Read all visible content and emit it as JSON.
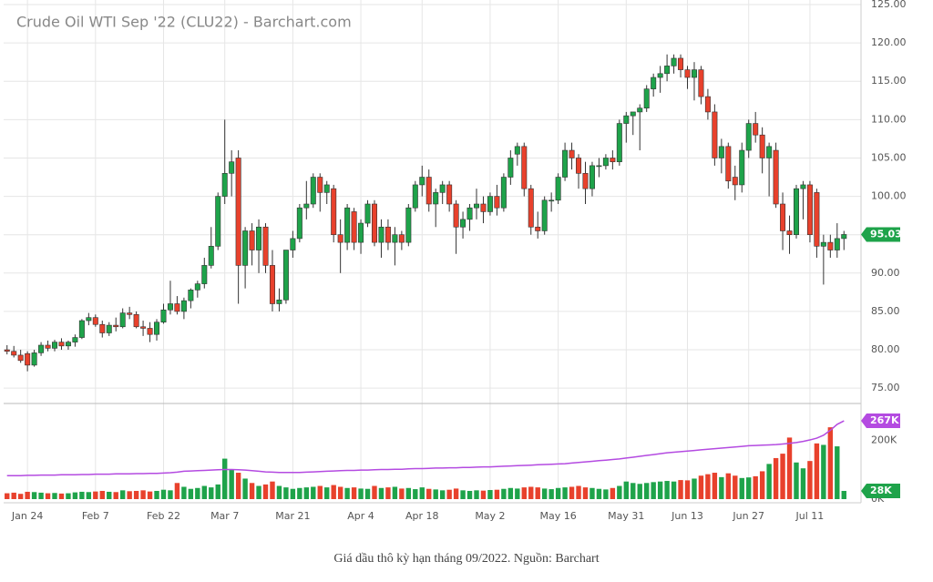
{
  "chart_data": {
    "type": "candlestick",
    "title": "Crude Oil WTI Sep '22 (CLU22) - Barchart.com",
    "caption": "Giá dầu thô kỳ hạn tháng 09/2022. Nguồn: Barchart",
    "up_color": "#1ea34a",
    "down_color": "#e8412c",
    "grid": true,
    "categories": [
      null,
      null,
      null,
      "Jan 24",
      null,
      null,
      null,
      null,
      null,
      null,
      null,
      null,
      null,
      "Feb 7",
      null,
      null,
      null,
      null,
      null,
      null,
      null,
      null,
      null,
      "Feb 22",
      null,
      null,
      null,
      null,
      null,
      null,
      null,
      null,
      "Mar 7",
      null,
      null,
      null,
      null,
      null,
      null,
      null,
      null,
      null,
      "Mar 21",
      null,
      null,
      null,
      null,
      null,
      null,
      null,
      null,
      null,
      "Apr 4",
      null,
      null,
      null,
      null,
      null,
      null,
      null,
      null,
      "Apr 18",
      null,
      null,
      null,
      null,
      null,
      null,
      null,
      null,
      null,
      "May 2",
      null,
      null,
      null,
      null,
      null,
      null,
      null,
      null,
      null,
      "May 16",
      null,
      null,
      null,
      null,
      null,
      null,
      null,
      null,
      null,
      "May 31",
      null,
      null,
      null,
      null,
      null,
      null,
      null,
      null,
      "Jun 13",
      null,
      null,
      null,
      null,
      null,
      null,
      null,
      null,
      "Jun 27",
      null,
      null,
      null,
      null,
      null,
      null,
      null,
      null,
      "Jul 11",
      null,
      null,
      null,
      null,
      null
    ],
    "ohlc": [
      [
        80,
        80.6,
        79.4,
        79.8
      ],
      [
        79.8,
        80.5,
        79,
        79.3
      ],
      [
        79.3,
        80,
        78.3,
        78.6
      ],
      [
        79.5,
        79.8,
        77.2,
        78
      ],
      [
        78,
        80,
        77.8,
        79.6
      ],
      [
        79.6,
        81,
        79.2,
        80.6
      ],
      [
        80.6,
        81.2,
        79.8,
        80.2
      ],
      [
        80.2,
        81.3,
        79.8,
        81
      ],
      [
        81,
        81.5,
        80,
        80.5
      ],
      [
        80.5,
        81.2,
        80,
        81
      ],
      [
        81,
        82,
        80.4,
        81.6
      ],
      [
        81.6,
        84,
        81.4,
        83.8
      ],
      [
        83.8,
        84.8,
        83.2,
        84.2
      ],
      [
        84.2,
        84.6,
        83,
        83.3
      ],
      [
        83.3,
        83.8,
        81.6,
        82.2
      ],
      [
        82.2,
        83.6,
        81.8,
        83.2
      ],
      [
        83.2,
        84.2,
        82.4,
        83
      ],
      [
        83,
        85.4,
        82.8,
        84.8
      ],
      [
        84.8,
        85.6,
        84,
        84.6
      ],
      [
        84.6,
        85,
        82.8,
        83
      ],
      [
        83,
        83.8,
        81.8,
        82.8
      ],
      [
        82.8,
        83.6,
        81,
        82
      ],
      [
        82,
        84,
        81.2,
        83.6
      ],
      [
        83.6,
        86,
        83.4,
        85.2
      ],
      [
        85.2,
        89,
        84.6,
        86
      ],
      [
        86,
        87,
        84.6,
        85
      ],
      [
        85,
        86.8,
        84,
        86.4
      ],
      [
        86.4,
        88,
        85.4,
        87.8
      ],
      [
        87.8,
        89,
        86.8,
        88.6
      ],
      [
        88.6,
        92,
        88,
        91
      ],
      [
        91,
        96,
        90.6,
        93.5
      ],
      [
        93.5,
        100.5,
        93,
        100
      ],
      [
        100,
        110,
        99,
        103
      ],
      [
        103,
        106,
        100,
        104.5
      ],
      [
        105,
        106,
        86,
        91
      ],
      [
        91,
        96,
        88,
        95.5
      ],
      [
        95.5,
        96.5,
        91,
        93
      ],
      [
        93,
        97,
        90,
        96
      ],
      [
        96,
        96.5,
        90,
        91
      ],
      [
        91,
        93,
        85,
        86
      ],
      [
        86,
        88,
        85,
        86.5
      ],
      [
        86.5,
        93,
        86,
        93
      ],
      [
        93,
        95.5,
        92,
        94.5
      ],
      [
        94.5,
        99,
        94,
        98.5
      ],
      [
        98.5,
        102,
        97,
        99
      ],
      [
        99,
        103,
        98.5,
        102.5
      ],
      [
        102.5,
        103,
        98,
        100.5
      ],
      [
        100.5,
        102,
        99,
        101.5
      ],
      [
        101,
        101.5,
        94,
        95
      ],
      [
        95,
        97,
        90,
        94
      ],
      [
        94,
        99,
        93,
        98.5
      ],
      [
        98,
        98.5,
        93,
        94
      ],
      [
        94,
        97,
        92.5,
        96.5
      ],
      [
        96.5,
        99.5,
        96,
        99
      ],
      [
        99,
        99.5,
        93.5,
        94
      ],
      [
        94,
        97,
        92,
        96
      ],
      [
        96,
        97,
        93,
        94
      ],
      [
        94,
        96,
        91,
        95
      ],
      [
        95,
        95.5,
        93,
        94
      ],
      [
        94,
        99,
        93.5,
        98.5
      ],
      [
        98.5,
        102,
        98,
        101.5
      ],
      [
        101.5,
        104,
        100,
        102.5
      ],
      [
        102.5,
        103.5,
        98,
        99
      ],
      [
        99,
        101,
        96,
        100.5
      ],
      [
        100.5,
        102,
        99,
        101.5
      ],
      [
        101.5,
        102,
        98,
        99
      ],
      [
        99,
        99.5,
        92.5,
        96
      ],
      [
        96,
        98,
        94.5,
        97
      ],
      [
        97,
        99,
        95.5,
        98.5
      ],
      [
        98.5,
        101,
        97,
        99
      ],
      [
        99,
        100,
        96.5,
        98
      ],
      [
        98,
        100.5,
        97.5,
        100
      ],
      [
        100,
        101.5,
        97.5,
        98.5
      ],
      [
        98.5,
        103,
        98,
        102.5
      ],
      [
        102.5,
        106,
        101.5,
        105
      ],
      [
        105.5,
        107,
        104,
        106.5
      ],
      [
        106.5,
        107,
        100,
        101
      ],
      [
        101,
        101.5,
        95,
        96
      ],
      [
        96,
        98,
        94.5,
        95.5
      ],
      [
        95.5,
        100,
        95,
        99.5
      ],
      [
        99.5,
        100.5,
        98,
        99.5
      ],
      [
        99.5,
        103,
        99,
        102.5
      ],
      [
        102.5,
        107,
        102,
        106
      ],
      [
        106,
        107,
        103.5,
        105
      ],
      [
        105,
        105.5,
        101,
        103
      ],
      [
        103,
        104.5,
        99,
        101
      ],
      [
        101,
        104.5,
        100,
        104
      ],
      [
        104,
        105,
        102.5,
        104
      ],
      [
        104,
        105.5,
        103.5,
        105
      ],
      [
        105,
        106,
        103.5,
        104.5
      ],
      [
        104.5,
        110,
        104,
        109.5
      ],
      [
        109.5,
        111,
        107,
        110.5
      ],
      [
        110.5,
        111,
        108,
        111
      ],
      [
        111,
        112,
        106,
        111.5
      ],
      [
        111.5,
        114.5,
        111,
        114
      ],
      [
        114,
        116,
        113,
        115.5
      ],
      [
        115.5,
        117,
        113.5,
        116
      ],
      [
        116,
        118.5,
        115,
        117
      ],
      [
        117,
        118.5,
        116,
        118
      ],
      [
        118,
        118.5,
        115.5,
        116.5
      ],
      [
        116.5,
        117,
        114,
        115.5
      ],
      [
        115.5,
        117.5,
        112.5,
        116.5
      ],
      [
        116.5,
        117,
        112,
        113
      ],
      [
        113,
        114,
        110,
        111
      ],
      [
        111,
        112,
        104,
        105
      ],
      [
        105,
        107.5,
        103,
        106.5
      ],
      [
        106.5,
        107,
        101,
        102
      ],
      [
        102.5,
        104,
        99.5,
        101.5
      ],
      [
        101.5,
        107,
        100.5,
        106
      ],
      [
        106,
        110,
        105,
        109.5
      ],
      [
        109.5,
        111,
        107,
        108
      ],
      [
        108,
        109,
        103,
        105
      ],
      [
        105,
        107,
        100,
        106.5
      ],
      [
        106,
        107,
        98.5,
        99
      ],
      [
        99,
        100.5,
        93,
        95.5
      ],
      [
        95.5,
        97.5,
        92.5,
        95
      ],
      [
        95,
        101.5,
        94.5,
        101
      ],
      [
        101,
        102,
        97,
        101.5
      ],
      [
        101.5,
        102,
        94,
        95
      ],
      [
        100.5,
        101,
        92,
        93.5
      ],
      [
        93.5,
        95,
        88.5,
        94
      ],
      [
        94,
        95,
        92,
        93
      ],
      [
        93,
        96.5,
        92,
        94.5
      ],
      [
        94.5,
        95.5,
        93,
        95.03
      ]
    ],
    "ylim": [
      73,
      125
    ],
    "yticks": [
      {
        "value": 75,
        "label": "75.00"
      },
      {
        "value": 80,
        "label": "80.00"
      },
      {
        "value": 85,
        "label": "85.00"
      },
      {
        "value": 90,
        "label": "90.00"
      },
      {
        "value": 95,
        "label": "95.00"
      },
      {
        "value": 100,
        "label": "100.00"
      },
      {
        "value": 105,
        "label": "105.00"
      },
      {
        "value": 110,
        "label": "110.00"
      },
      {
        "value": 115,
        "label": "115.00"
      },
      {
        "value": 120,
        "label": "120.00"
      },
      {
        "value": 125,
        "label": "125.00"
      }
    ],
    "volume": {
      "ylim": [
        0,
        320000
      ],
      "yticks": [
        {
          "value": 0,
          "label": "0K"
        },
        {
          "value": 200000,
          "label": "200K"
        }
      ],
      "last_label": "28K",
      "values": [
        20000,
        22000,
        18000,
        25000,
        24000,
        22000,
        20000,
        21000,
        19000,
        20000,
        23000,
        25000,
        24000,
        26000,
        28000,
        25000,
        24000,
        30000,
        27000,
        28000,
        30000,
        26000,
        28000,
        32000,
        30000,
        55000,
        42000,
        35000,
        38000,
        45000,
        40000,
        50000,
        138000,
        100000,
        90000,
        70000,
        55000,
        45000,
        50000,
        60000,
        45000,
        40000,
        35000,
        38000,
        40000,
        42000,
        45000,
        40000,
        48000,
        42000,
        38000,
        40000,
        36000,
        35000,
        45000,
        38000,
        40000,
        42000,
        36000,
        38000,
        34000,
        40000,
        35000,
        33000,
        30000,
        32000,
        36000,
        30000,
        28000,
        30000,
        29000,
        31000,
        32000,
        35000,
        38000,
        36000,
        40000,
        42000,
        40000,
        36000,
        34000,
        38000,
        40000,
        42000,
        45000,
        40000,
        38000,
        35000,
        33000,
        38000,
        45000,
        60000,
        55000,
        52000,
        55000,
        58000,
        60000,
        62000,
        60000,
        65000,
        64000,
        70000,
        80000,
        85000,
        90000,
        75000,
        88000,
        80000,
        72000,
        74000,
        78000,
        95000,
        120000,
        140000,
        155000,
        210000,
        125000,
        105000,
        130000,
        190000,
        185000,
        245000,
        180000,
        28000
      ]
    },
    "volume_ma": {
      "color": "#b44be1",
      "last_label": "267K",
      "values": [
        80000,
        80000,
        80000,
        81000,
        81000,
        82000,
        82000,
        82000,
        83000,
        83000,
        83000,
        84000,
        84000,
        85000,
        85000,
        85000,
        86000,
        86000,
        86000,
        87000,
        87000,
        88000,
        88000,
        89000,
        90000,
        92000,
        95000,
        96000,
        97000,
        98000,
        99000,
        100000,
        101000,
        101000,
        100000,
        99000,
        97000,
        95000,
        93000,
        92000,
        91000,
        91000,
        91000,
        91000,
        92000,
        93000,
        94000,
        95000,
        96000,
        97000,
        98000,
        98000,
        99000,
        99000,
        100000,
        101000,
        101000,
        102000,
        102000,
        103000,
        104000,
        104000,
        105000,
        106000,
        106000,
        107000,
        107000,
        108000,
        108000,
        109000,
        110000,
        110000,
        111000,
        112000,
        113000,
        114000,
        115000,
        116000,
        117000,
        118000,
        119000,
        120000,
        121000,
        123000,
        125000,
        127000,
        129000,
        131000,
        133000,
        135000,
        137000,
        140000,
        143000,
        146000,
        149000,
        152000,
        155000,
        158000,
        160000,
        162000,
        164000,
        166000,
        168000,
        170000,
        172000,
        174000,
        176000,
        178000,
        180000,
        182000,
        183000,
        184000,
        185000,
        186000,
        188000,
        190000,
        193000,
        197000,
        202000,
        208000,
        218000,
        235000,
        255000,
        267000
      ]
    }
  }
}
